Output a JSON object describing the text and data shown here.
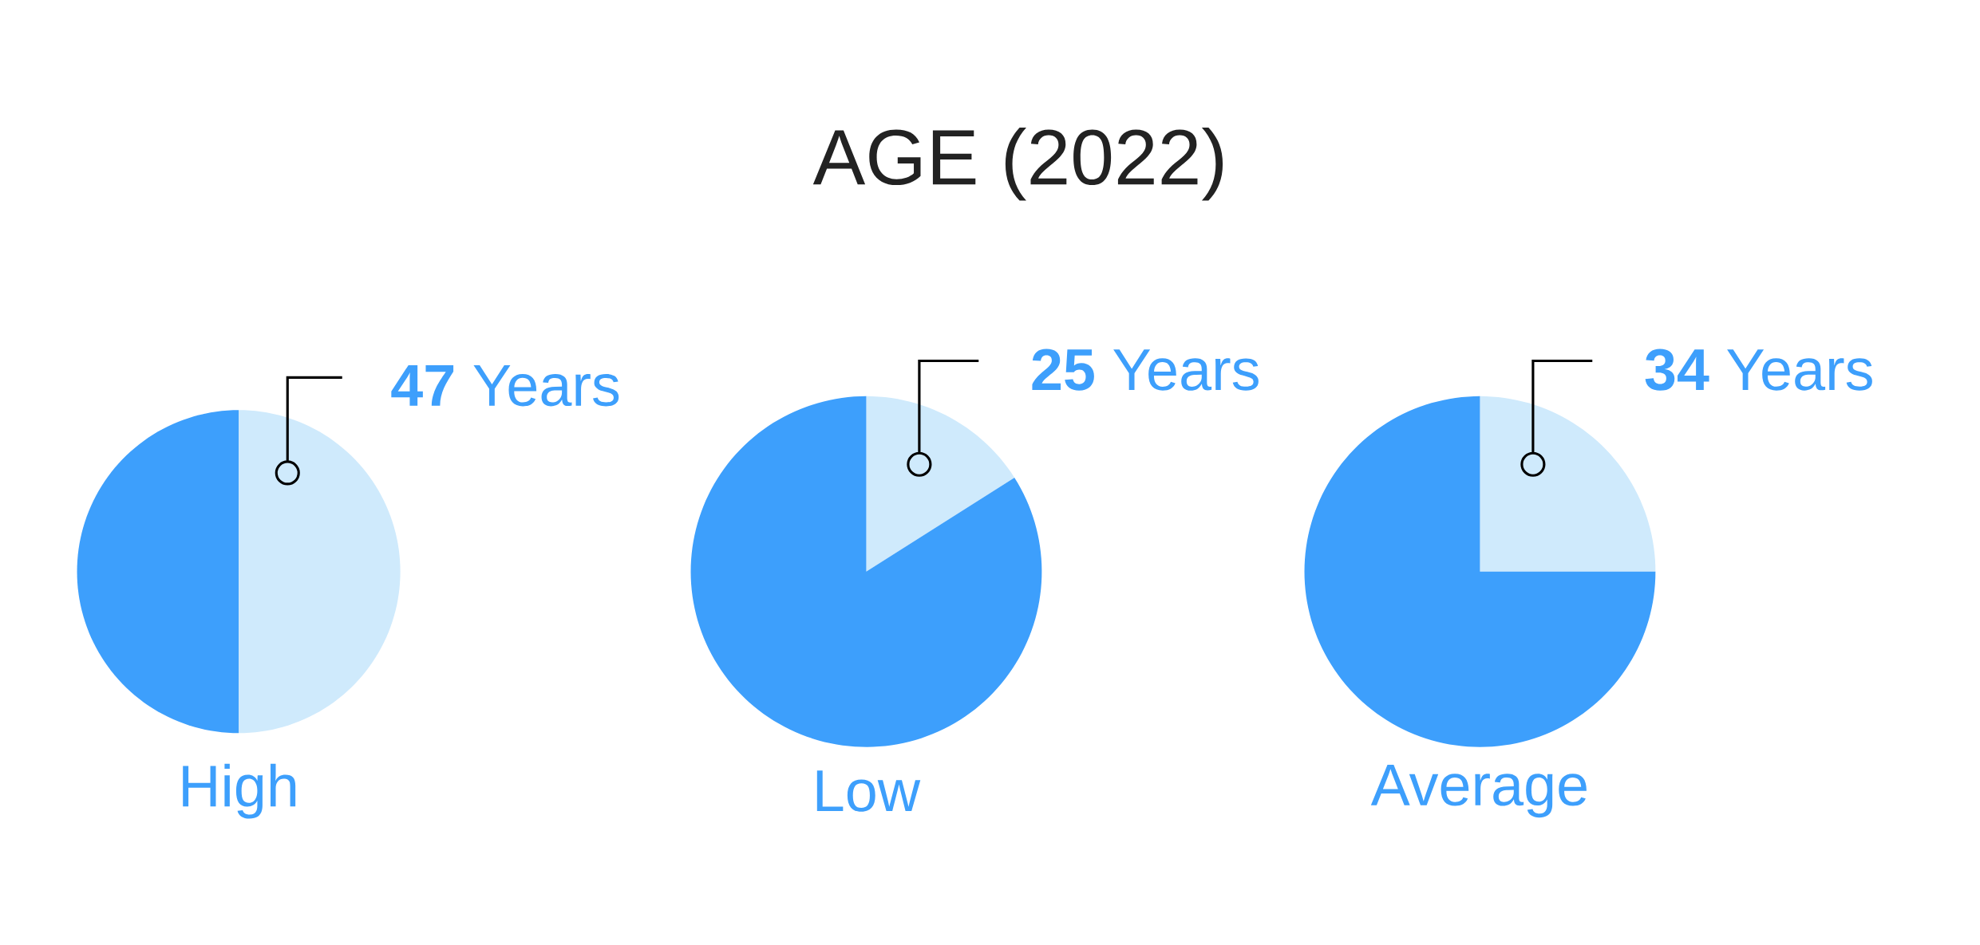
{
  "chart_data": [
    {
      "type": "other",
      "title": "AGE (2022)"
    },
    {
      "type": "pie",
      "xlabel": "High",
      "annotations": [
        "**47** Years"
      ],
      "categories": [
        null,
        null
      ],
      "values": [
        50,
        50
      ],
      "colors": [
        "#cfeafc",
        "#3d9ffc"
      ]
    },
    {
      "type": "pie",
      "xlabel": "Low",
      "annotations": [
        "**25** Years"
      ],
      "categories": [
        null,
        null
      ],
      "values": [
        16,
        84
      ],
      "colors": [
        "#cfeafc",
        "#3d9ffc"
      ]
    },
    {
      "type": "pie",
      "xlabel": "Average",
      "annotations": [
        "**34** Years"
      ],
      "categories": [
        null,
        null
      ],
      "values": [
        25,
        75
      ],
      "colors": [
        "#cfeafc",
        "#3d9ffc"
      ]
    }
  ]
}
